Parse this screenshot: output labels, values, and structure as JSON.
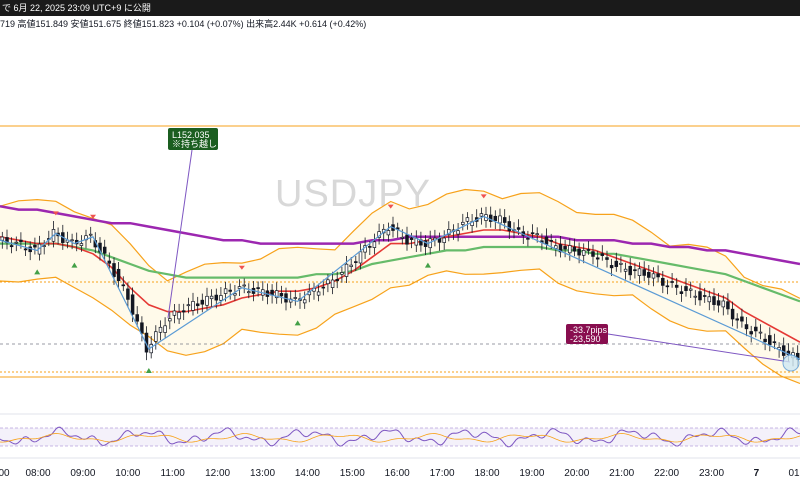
{
  "header": {
    "date_text": "で 6月 22, 2025 23:09 UTC+9 に公開",
    "ohlc_text": "719  高値151.849  安値151.675  終値151.823  +0.104 (+0.07%)  出来高2.44K  +0.614 (+0.42%)"
  },
  "watermark": "USDJPY",
  "colors": {
    "up_candle": "#26a69a",
    "candle": "#131722",
    "bollinger": "#f7a21b",
    "ma_fast": "#e53935",
    "ma_mid": "#66bb6a",
    "ma_slow": "#9c27b0",
    "zigzag": "#5b9bd5",
    "entry_label": "#1b5e20",
    "result_label": "#880e4f",
    "oscillator": "#7e57c2"
  },
  "annotations": {
    "entry": {
      "line1": "L152.035",
      "line2": "※持ち越し"
    },
    "result": {
      "line1": "-33.7pips",
      "line2": "-23,590"
    }
  },
  "chart_data": {
    "type": "line",
    "x_ticks": [
      "00",
      "08:00",
      "09:00",
      "10:00",
      "11:00",
      "12:00",
      "13:00",
      "14:00",
      "15:00",
      "16:00",
      "17:00",
      "18:00",
      "19:00",
      "20:00",
      "21:00",
      "22:00",
      "23:00",
      "7",
      "01"
    ],
    "y_range": [
      151.4,
      152.4
    ],
    "series": [
      {
        "key": "price",
        "values": [
          151.87,
          151.86,
          151.84,
          151.89,
          151.86,
          151.88,
          151.8,
          151.7,
          151.55,
          151.63,
          151.67,
          151.69,
          151.71,
          151.73,
          151.72,
          151.71,
          151.69,
          151.72,
          151.75,
          151.8,
          151.86,
          151.91,
          151.87,
          151.86,
          151.88,
          151.92,
          151.94,
          151.93,
          151.89,
          151.88,
          151.85,
          151.84,
          151.83,
          151.8,
          151.78,
          151.77,
          151.74,
          151.72,
          151.7,
          151.68,
          151.62,
          151.59,
          151.55,
          151.52
        ]
      },
      {
        "key": "ma_fast",
        "values": [
          151.88,
          151.87,
          151.86,
          151.86,
          151.85,
          151.83,
          151.79,
          151.73,
          151.68,
          151.66,
          151.66,
          151.67,
          151.68,
          151.7,
          151.71,
          151.72,
          151.72,
          151.73,
          151.75,
          151.78,
          151.82,
          151.86,
          151.86,
          151.87,
          151.88,
          151.89,
          151.9,
          151.9,
          151.89,
          151.88,
          151.86,
          151.85,
          151.84,
          151.82,
          151.8,
          151.78,
          151.76,
          151.74,
          151.72,
          151.7,
          151.66,
          151.63,
          151.6,
          151.57
        ]
      },
      {
        "key": "ma_mid",
        "values": [
          151.86,
          151.86,
          151.86,
          151.86,
          151.85,
          151.84,
          151.82,
          151.8,
          151.78,
          151.77,
          151.76,
          151.76,
          151.76,
          151.76,
          151.76,
          151.76,
          151.76,
          151.77,
          151.77,
          151.78,
          151.8,
          151.81,
          151.82,
          151.83,
          151.84,
          151.84,
          151.85,
          151.85,
          151.85,
          151.85,
          151.84,
          151.84,
          151.83,
          151.83,
          151.82,
          151.81,
          151.8,
          151.79,
          151.78,
          151.77,
          151.75,
          151.73,
          151.71,
          151.69
        ]
      },
      {
        "key": "ma_slow",
        "values": [
          151.97,
          151.96,
          151.96,
          151.95,
          151.94,
          151.93,
          151.92,
          151.92,
          151.91,
          151.9,
          151.89,
          151.88,
          151.87,
          151.87,
          151.86,
          151.86,
          151.86,
          151.86,
          151.86,
          151.86,
          151.87,
          151.87,
          151.88,
          151.88,
          151.88,
          151.88,
          151.88,
          151.88,
          151.88,
          151.88,
          151.88,
          151.87,
          151.87,
          151.87,
          151.86,
          151.86,
          151.85,
          151.85,
          151.84,
          151.84,
          151.83,
          151.82,
          151.81,
          151.8
        ]
      }
    ],
    "levels": [
      152.035,
      151.51,
      151.5
    ],
    "grid": false
  }
}
